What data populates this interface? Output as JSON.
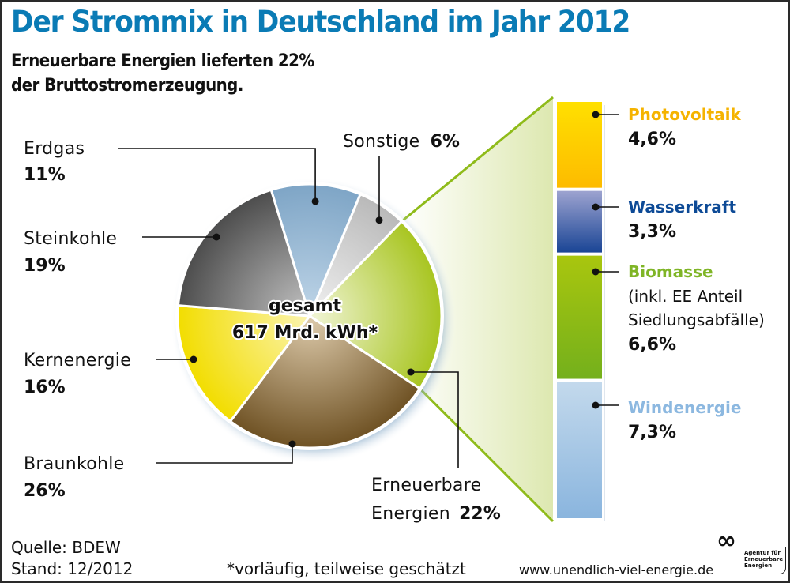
{
  "header": {
    "title": "Der Strommix in Deutschland im Jahr 2012",
    "subtitle_line1": "Erneuerbare Energien lieferten 22%",
    "subtitle_line2": "der Bruttostromerzeugung."
  },
  "center": {
    "line1": "gesamt",
    "line2": "617 Mrd. kWh*"
  },
  "footer": {
    "source": "Quelle: BDEW",
    "date": "Stand: 12/2012",
    "note": "*vorläufig, teilweise geschätzt",
    "url": "www.unendlich-viel-energie.de",
    "logo_symbol": "∞",
    "logo_line1": "Agentur für",
    "logo_line2": "Erneuerbare",
    "logo_line3": "Energien"
  },
  "chart_data": [
    {
      "type": "pie",
      "title": "Der Strommix in Deutschland im Jahr 2012",
      "subtitle": "Erneuerbare Energien lieferten 22% der Bruttostromerzeugung.",
      "total_label": "gesamt 617 Mrd. kWh*",
      "unit": "%",
      "start_angle_deg": -107,
      "slices": [
        {
          "name": "Erdgas",
          "value": 11,
          "label_pct": "11%",
          "color_light": "#bcd3e6",
          "color_dark": "#7ea5c6"
        },
        {
          "name": "Sonstige",
          "value": 6,
          "label_pct": "6%",
          "color_light": "#eeeeee",
          "color_dark": "#b9b9b9"
        },
        {
          "name": "Erneuerbare Energien",
          "value": 22,
          "label_pct": "22%",
          "color_light": "#eef3cf",
          "color_dark": "#a8c520"
        },
        {
          "name": "Braunkohle",
          "value": 26,
          "label_pct": "26%",
          "color_light": "#d9c6a6",
          "color_dark": "#6f5224"
        },
        {
          "name": "Kernenergie",
          "value": 16,
          "label_pct": "16%",
          "color_light": "#fbf3a8",
          "color_dark": "#f2dd00"
        },
        {
          "name": "Steinkohle",
          "value": 19,
          "label_pct": "19%",
          "color_light": "#bdbdbd",
          "color_dark": "#4d4d4d"
        }
      ]
    },
    {
      "type": "bar",
      "stacked": true,
      "title": "Erneuerbare Energien 22%",
      "unit": "%",
      "segments": [
        {
          "name": "Photovoltaik",
          "value": 4.6,
          "label_pct": "4,6%",
          "name_color": "#f5b300",
          "color_top": "#ffe000",
          "color_bottom": "#fdbb00"
        },
        {
          "name": "Wasserkraft",
          "value": 3.3,
          "label_pct": "3,3%",
          "name_color": "#0d4a96",
          "color_top": "#9da3d0",
          "color_bottom": "#1a4595"
        },
        {
          "name": "Biomasse",
          "value": 6.6,
          "label_pct": "6,6%",
          "note_line1": "(inkl. EE Anteil",
          "note_line2": "Siedlungsabfälle)",
          "name_color": "#7fb526",
          "color_top": "#a9c60e",
          "color_bottom": "#74b01c"
        },
        {
          "name": "Windenergie",
          "value": 7.3,
          "label_pct": "7,3%",
          "name_color": "#8cb8e0",
          "color_top": "#c3d9ec",
          "color_bottom": "#8ab5de"
        }
      ]
    }
  ]
}
